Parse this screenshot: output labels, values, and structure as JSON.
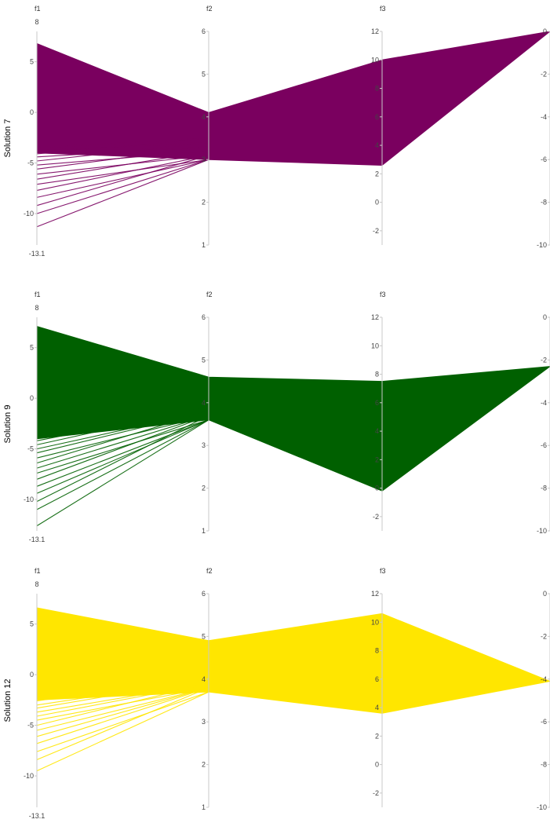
{
  "chart_data": [
    {
      "type": "parallel_coordinates",
      "row_label": "Solution 7",
      "color": "#7a005f",
      "axes": [
        {
          "name": "f1",
          "range": [
            -13.1,
            8
          ],
          "ticks": [
            "8",
            "5",
            "0",
            "-5",
            "-10",
            "-13.1"
          ]
        },
        {
          "name": "f2",
          "range": [
            1,
            6
          ],
          "ticks": [
            "6",
            "5",
            "4",
            "3",
            "2",
            "1"
          ]
        },
        {
          "name": "f3",
          "range": [
            -3,
            12
          ],
          "ticks": [
            "12",
            "10",
            "8",
            "6",
            "4",
            "2",
            "0",
            "-2"
          ]
        },
        {
          "name": "",
          "range": [
            -10,
            0
          ],
          "ticks": [
            "0",
            "-2",
            "-4",
            "-6",
            "-8",
            "-10"
          ]
        }
      ],
      "band": {
        "upper": [
          6.8,
          4.1,
          10.0,
          0.0
        ],
        "lower": [
          -4.0,
          3.0,
          2.6,
          0.0
        ]
      },
      "outlier_f1_values": [
        -3.5,
        -3.8,
        -4.1,
        -4.4,
        -4.8,
        -5.2,
        -5.6,
        -6.1,
        -6.6,
        -7.1,
        -7.7,
        -8.4,
        -9.2,
        -10.0,
        -11.3
      ],
      "outlier_f2_values": [
        3.5,
        3.4,
        3.5,
        3.3,
        3.4,
        3.2,
        3.3,
        3.1,
        3.2,
        3.0,
        3.1,
        3.0,
        3.1,
        3.0,
        3.0
      ]
    },
    {
      "type": "parallel_coordinates",
      "row_label": "Solution 9",
      "color": "#006000",
      "axes": [
        {
          "name": "f1",
          "range": [
            -13.1,
            8
          ],
          "ticks": [
            "8",
            "5",
            "0",
            "-5",
            "-10",
            "-13.1"
          ]
        },
        {
          "name": "f2",
          "range": [
            1,
            6
          ],
          "ticks": [
            "6",
            "5",
            "4",
            "3",
            "2",
            "1"
          ]
        },
        {
          "name": "f3",
          "range": [
            -3,
            12
          ],
          "ticks": [
            "12",
            "10",
            "8",
            "6",
            "4",
            "2",
            "0",
            "-2"
          ]
        },
        {
          "name": "",
          "range": [
            -10,
            0
          ],
          "ticks": [
            "0",
            "-2",
            "-4",
            "-6",
            "-8",
            "-10"
          ]
        }
      ],
      "band": {
        "upper": [
          7.1,
          4.6,
          7.5,
          -2.3
        ],
        "lower": [
          -4.0,
          3.6,
          -0.2,
          -2.3
        ]
      },
      "outlier_f1_values": [
        -3.8,
        -4.2,
        -4.6,
        -5.0,
        -5.4,
        -5.9,
        -6.4,
        -6.9,
        -7.4,
        -8.0,
        -8.7,
        -9.4,
        -10.2,
        -11.0,
        -12.6
      ],
      "outlier_f2_values": [
        4.0,
        3.9,
        3.9,
        3.8,
        3.8,
        3.7,
        3.8,
        3.7,
        3.6,
        3.7,
        3.6,
        3.6,
        3.7,
        3.6,
        3.6
      ]
    },
    {
      "type": "parallel_coordinates",
      "row_label": "Solution 12",
      "color": "#ffe600",
      "axes": [
        {
          "name": "f1",
          "range": [
            -13.1,
            8
          ],
          "ticks": [
            "8",
            "5",
            "0",
            "-5",
            "-10",
            "-13.1"
          ]
        },
        {
          "name": "f2",
          "range": [
            1,
            6
          ],
          "ticks": [
            "6",
            "5",
            "4",
            "3",
            "2",
            "1"
          ]
        },
        {
          "name": "f3",
          "range": [
            -3,
            12
          ],
          "ticks": [
            "12",
            "10",
            "8",
            "6",
            "4",
            "2",
            "0",
            "-2"
          ]
        },
        {
          "name": "",
          "range": [
            -10,
            0
          ],
          "ticks": [
            "0",
            "-2",
            "-4",
            "-6",
            "-8",
            "-10"
          ]
        }
      ],
      "band": {
        "upper": [
          6.6,
          4.9,
          10.6,
          -4.1
        ],
        "lower": [
          -2.5,
          3.7,
          3.6,
          -4.1
        ]
      },
      "outlier_f1_values": [
        -2.6,
        -3.0,
        -3.3,
        -3.7,
        -4.1,
        -4.5,
        -5.0,
        -5.5,
        -6.1,
        -6.8,
        -7.6,
        -8.4,
        -9.5
      ],
      "outlier_f2_values": [
        4.1,
        4.0,
        4.0,
        3.9,
        3.9,
        3.8,
        3.9,
        3.8,
        3.8,
        3.8,
        3.7,
        3.8,
        3.7
      ]
    }
  ]
}
